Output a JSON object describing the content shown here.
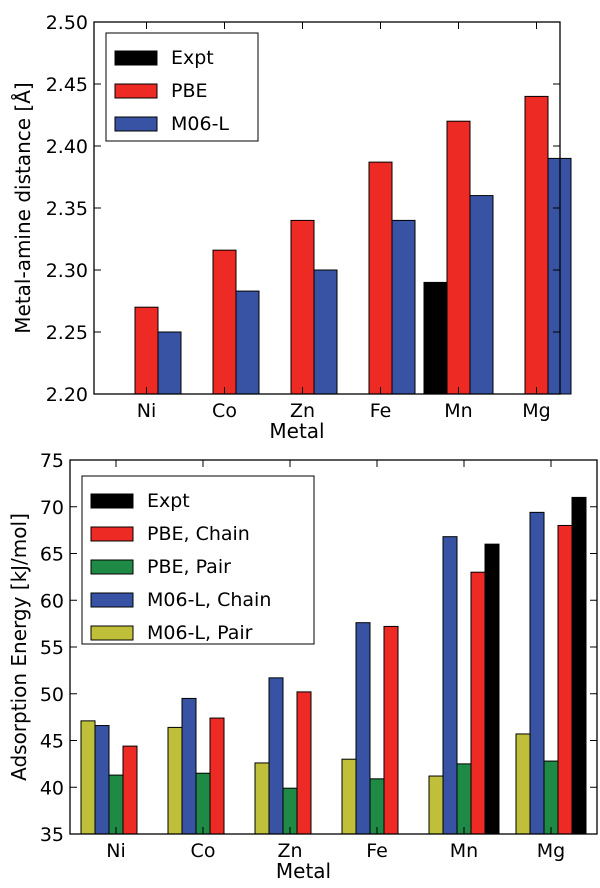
{
  "chart_data": [
    {
      "type": "bar",
      "categories": [
        "Ni",
        "Co",
        "Zn",
        "Fe",
        "Mn",
        "Mg"
      ],
      "series": [
        {
          "name": "Expt",
          "color": "#000000",
          "values": [
            null,
            null,
            null,
            null,
            2.29,
            null
          ]
        },
        {
          "name": "PBE",
          "color": "#ee2a25",
          "values": [
            2.27,
            2.316,
            2.34,
            2.387,
            2.42,
            2.44
          ]
        },
        {
          "name": "M06-L",
          "color": "#3953a4",
          "values": [
            2.25,
            2.283,
            2.3,
            2.34,
            2.36,
            2.39
          ]
        }
      ],
      "xlabel": "Metal",
      "ylabel": "Metal-amine distance [Å]",
      "ylim": [
        2.2,
        2.5
      ],
      "yticks": [
        "2.20",
        "2.25",
        "2.30",
        "2.35",
        "2.40",
        "2.45",
        "2.50"
      ],
      "legend": "top-left",
      "grid": false
    },
    {
      "type": "bar",
      "categories": [
        "Ni",
        "Co",
        "Zn",
        "Fe",
        "Mn",
        "Mg"
      ],
      "series": [
        {
          "name": "M06-L, Pair",
          "color": "#bfbf3a",
          "values": [
            47.1,
            46.4,
            42.6,
            43.0,
            41.2,
            45.7
          ]
        },
        {
          "name": "M06-L, Chain",
          "color": "#3953a4",
          "values": [
            46.6,
            49.5,
            51.7,
            57.6,
            66.8,
            69.4
          ]
        },
        {
          "name": "PBE, Pair",
          "color": "#1f8a45",
          "values": [
            41.3,
            41.5,
            39.9,
            40.9,
            42.5,
            42.8
          ]
        },
        {
          "name": "PBE, Chain",
          "color": "#ee2a25",
          "values": [
            44.4,
            47.4,
            50.2,
            57.2,
            63.0,
            68.0
          ]
        },
        {
          "name": "Expt",
          "color": "#000000",
          "values": [
            null,
            null,
            null,
            null,
            66.0,
            71.0
          ]
        }
      ],
      "legend_order": [
        "Expt",
        "PBE, Chain",
        "PBE, Pair",
        "M06-L, Chain",
        "M06-L, Pair"
      ],
      "xlabel": "Metal",
      "ylabel": "Adsorption Energy [kJ/mol]",
      "ylim": [
        35,
        75
      ],
      "yticks": [
        "35",
        "40",
        "45",
        "50",
        "55",
        "60",
        "65",
        "70",
        "75"
      ],
      "legend": "top-left",
      "grid": false
    }
  ]
}
